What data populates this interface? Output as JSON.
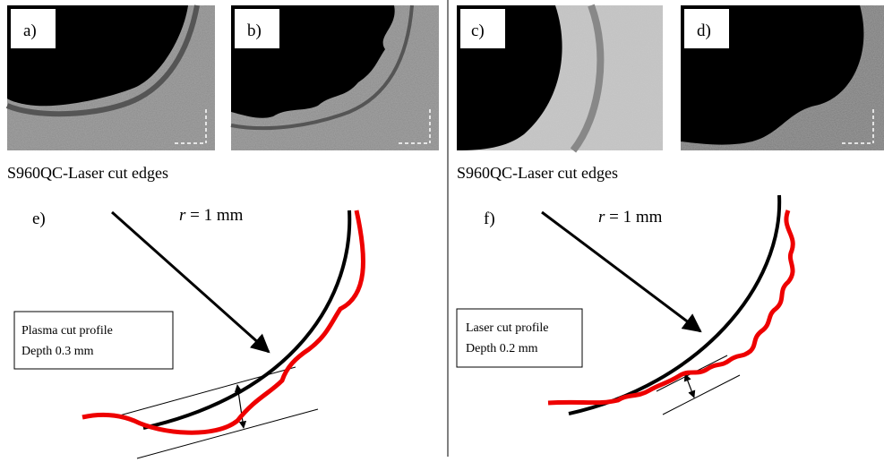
{
  "panels": [
    {
      "label": "a)"
    },
    {
      "label": "b)"
    },
    {
      "label": "c)"
    },
    {
      "label": "d)"
    }
  ],
  "captions": [
    "S960QC-Laser cut edges",
    "S960QC-Laser cut edges"
  ],
  "diagrams": [
    {
      "label": "e)",
      "radius_symbol": "r",
      "radius_text": "= 1 mm",
      "box": [
        "Plasma cut profile",
        "Depth 0.3 mm"
      ]
    },
    {
      "label": "f)",
      "radius_symbol": "r",
      "radius_text": "= 1 mm",
      "box": [
        "Laser cut profile",
        "Depth 0.2 mm"
      ]
    }
  ]
}
